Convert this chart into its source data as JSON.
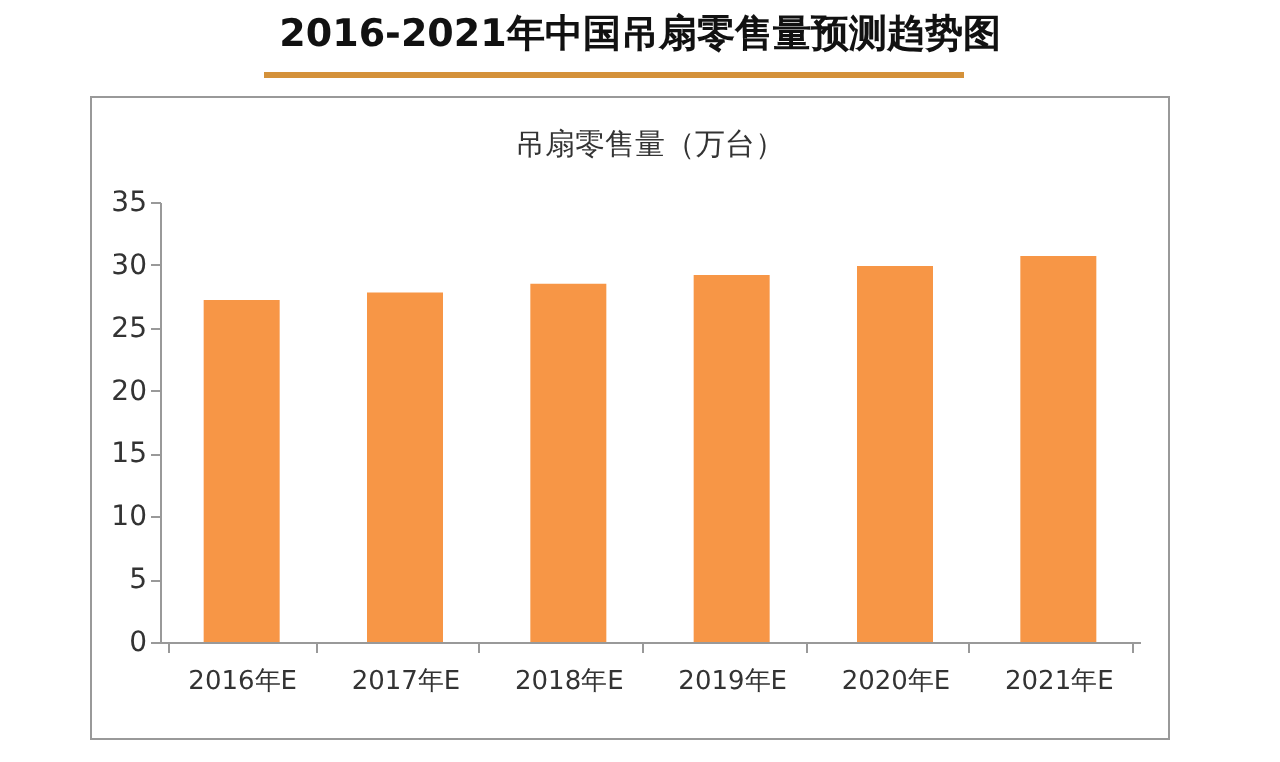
{
  "chart_data": {
    "type": "bar",
    "title": "2016-2021年中国吊扇零售量预测趋势图",
    "subtitle": "吊扇零售量（万台）",
    "categories": [
      "2016年E",
      "2017年E",
      "2018年E",
      "2019年E",
      "2020年E",
      "2021年E"
    ],
    "values": [
      27.2,
      27.8,
      28.5,
      29.2,
      29.9,
      30.7
    ],
    "color": "#f79646",
    "ylim": [
      0,
      35
    ],
    "yticks": [
      0,
      5,
      10,
      15,
      20,
      25,
      30,
      35
    ],
    "grid": false
  }
}
